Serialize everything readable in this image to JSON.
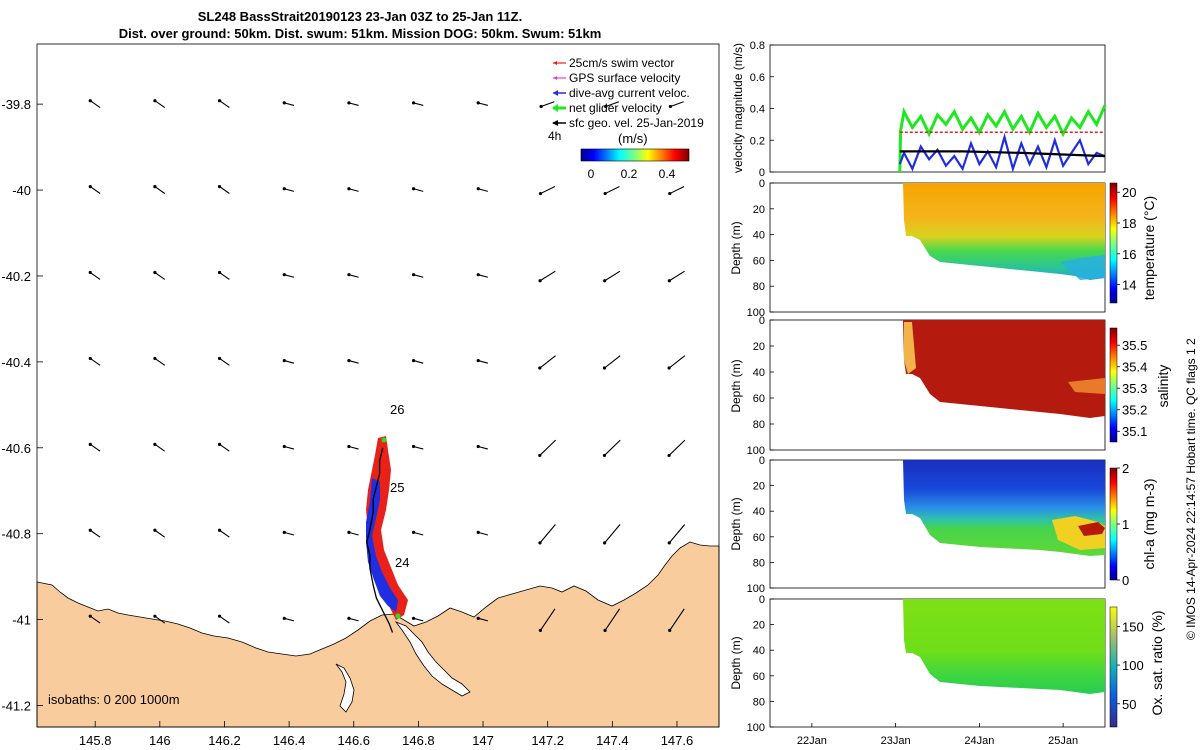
{
  "header": {
    "title_line1": "SL248 BassStrait20190123 23-Jan 03Z to 25-Jan 11Z.",
    "title_line2": "Dist. over ground: 50km. Dist. swum: 51km. Mission DOG: 50km. Swum: 51km"
  },
  "credit": "© IMOS 14-Apr-2024 22:14:57 Hobart time. QC flags 1  2",
  "colors": {
    "land": "#f9cc9e",
    "swim": "#e8211b",
    "gps": "#e53bd5",
    "current": "#1f2ee0",
    "net": "#1ee81e",
    "geo": "#000000"
  },
  "chart_data": [
    {
      "type": "scatter",
      "name": "map",
      "x_ticks": [
        "145.8",
        "146",
        "146.2",
        "146.4",
        "146.6",
        "146.8",
        "147",
        "147.2",
        "147.4",
        "147.6"
      ],
      "y_ticks": [
        "-39.8",
        "-40",
        "-40.2",
        "-40.4",
        "-40.6",
        "-40.8",
        "-41",
        "-41.2"
      ],
      "xlim": [
        145.62,
        147.73
      ],
      "ylim": [
        -41.25,
        -39.66
      ],
      "legend": {
        "items": [
          "25cm/s swim vector",
          "GPS surface velocity",
          "dive-avg current veloc.",
          "net glider velocity",
          "sfc geo. vel. 25-Jan-2019"
        ],
        "placement": "top-right",
        "scale_label": "4h",
        "colorbar_label": "(m/s)",
        "colorbar_ticks": [
          "0",
          "0.2",
          "0.4"
        ]
      },
      "day_labels": [
        {
          "label": "26",
          "x": 146.75,
          "y": -40.55
        },
        {
          "label": "25",
          "x": 146.74,
          "y": -40.72
        },
        {
          "label": "24",
          "x": 146.77,
          "y": -40.9
        }
      ],
      "track": [
        [
          146.72,
          -41.03
        ],
        [
          146.71,
          -41.01
        ],
        [
          146.69,
          -40.98
        ],
        [
          146.67,
          -40.95
        ],
        [
          146.66,
          -40.92
        ],
        [
          146.65,
          -40.88
        ],
        [
          146.65,
          -40.85
        ],
        [
          146.64,
          -40.82
        ],
        [
          146.65,
          -40.79
        ],
        [
          146.66,
          -40.75
        ],
        [
          146.66,
          -40.72
        ],
        [
          146.67,
          -40.69
        ],
        [
          146.68,
          -40.66
        ],
        [
          146.68,
          -40.63
        ],
        [
          146.69,
          -40.6
        ]
      ],
      "isobaths_label": "isobaths: 0   200  1000m",
      "vector_grid": {
        "lon": [
          145.8,
          146,
          146.2,
          146.4,
          146.6,
          146.8,
          147,
          147.2,
          147.4,
          147.6
        ],
        "lat": [
          -39.8,
          -40,
          -40.2,
          -40.4,
          -40.6,
          -40.8,
          -41
        ]
      }
    },
    {
      "type": "line",
      "name": "velocity",
      "ylabel": "velocity magnitude (m/s)",
      "y_ticks": [
        "0",
        "0.2",
        "0.4",
        "0.6",
        "0.8"
      ],
      "ylim": [
        0,
        0.8
      ],
      "xlim": [
        "21-Jan 12:00",
        "25-Jan 12:00"
      ],
      "series": [
        {
          "name": "net glider velocity",
          "values": [
            [
              23.05,
              0.0
            ],
            [
              23.06,
              0.26
            ],
            [
              23.1,
              0.38
            ],
            [
              23.2,
              0.28
            ],
            [
              23.3,
              0.35
            ],
            [
              23.4,
              0.24
            ],
            [
              23.5,
              0.36
            ],
            [
              23.6,
              0.3
            ],
            [
              23.7,
              0.38
            ],
            [
              23.8,
              0.27
            ],
            [
              23.9,
              0.34
            ],
            [
              24.0,
              0.25
            ],
            [
              24.1,
              0.36
            ],
            [
              24.2,
              0.29
            ],
            [
              24.3,
              0.38
            ],
            [
              24.4,
              0.27
            ],
            [
              24.5,
              0.35
            ],
            [
              24.6,
              0.25
            ],
            [
              24.7,
              0.37
            ],
            [
              24.8,
              0.28
            ],
            [
              24.9,
              0.35
            ],
            [
              25.0,
              0.24
            ],
            [
              25.1,
              0.34
            ],
            [
              25.2,
              0.28
            ],
            [
              25.3,
              0.38
            ],
            [
              25.4,
              0.3
            ],
            [
              25.5,
              0.42
            ]
          ]
        },
        {
          "name": "swim speed",
          "values": [
            [
              23.05,
              0.25
            ],
            [
              25.5,
              0.25
            ]
          ]
        },
        {
          "name": "dive-avg current",
          "values": [
            [
              23.05,
              0.05
            ],
            [
              23.1,
              0.12
            ],
            [
              23.2,
              0.02
            ],
            [
              23.3,
              0.16
            ],
            [
              23.4,
              0.08
            ],
            [
              23.5,
              0.14
            ],
            [
              23.6,
              0.04
            ],
            [
              23.7,
              0.1
            ],
            [
              23.8,
              0.02
            ],
            [
              23.9,
              0.18
            ],
            [
              24.0,
              0.05
            ],
            [
              24.1,
              0.13
            ],
            [
              24.2,
              0.03
            ],
            [
              24.3,
              0.22
            ],
            [
              24.4,
              0.02
            ],
            [
              24.5,
              0.18
            ],
            [
              24.6,
              0.05
            ],
            [
              24.7,
              0.16
            ],
            [
              24.8,
              0.03
            ],
            [
              24.9,
              0.2
            ],
            [
              25.0,
              0.04
            ],
            [
              25.1,
              0.12
            ],
            [
              25.2,
              0.2
            ],
            [
              25.3,
              0.05
            ],
            [
              25.4,
              0.12
            ],
            [
              25.5,
              0.1
            ]
          ]
        },
        {
          "name": "sfc geo. vel.",
          "values": [
            [
              23.05,
              0.13
            ],
            [
              23.8,
              0.13
            ],
            [
              24.5,
              0.12
            ],
            [
              25.5,
              0.1
            ]
          ]
        }
      ]
    },
    {
      "type": "heatmap",
      "name": "temperature",
      "ylabel": "Depth (m)",
      "y_ticks": [
        "0",
        "20",
        "40",
        "60",
        "80",
        "100"
      ],
      "colorbar_label": "temperature (°C)",
      "colorbar_ticks": [
        "14",
        "16",
        "18",
        "20"
      ],
      "clim": [
        12.8,
        20.6
      ]
    },
    {
      "type": "heatmap",
      "name": "salinity",
      "ylabel": "Depth (m)",
      "y_ticks": [
        "0",
        "20",
        "40",
        "60",
        "80",
        "100"
      ],
      "colorbar_label": "salinity",
      "colorbar_ticks": [
        "35.1",
        "35.2",
        "35.3",
        "35.4",
        "35.5"
      ],
      "clim": [
        35.05,
        35.58
      ]
    },
    {
      "type": "heatmap",
      "name": "chl-a",
      "ylabel": "Depth (m)",
      "y_ticks": [
        "0",
        "20",
        "40",
        "60",
        "80",
        "100"
      ],
      "colorbar_label": "chl-a (mg m-3)",
      "colorbar_ticks": [
        "0",
        "1",
        "2"
      ],
      "clim": [
        0,
        2
      ]
    },
    {
      "type": "heatmap",
      "name": "oxygen",
      "ylabel": "Depth (m)",
      "y_ticks": [
        "0",
        "20",
        "40",
        "60",
        "80",
        "100"
      ],
      "colorbar_label": "Ox. sat. ratio (%)",
      "colorbar_ticks": [
        "50",
        "100",
        "150"
      ],
      "clim": [
        20,
        175
      ],
      "x_ticks": [
        "22Jan",
        "23Jan",
        "24Jan",
        "25Jan"
      ]
    }
  ]
}
